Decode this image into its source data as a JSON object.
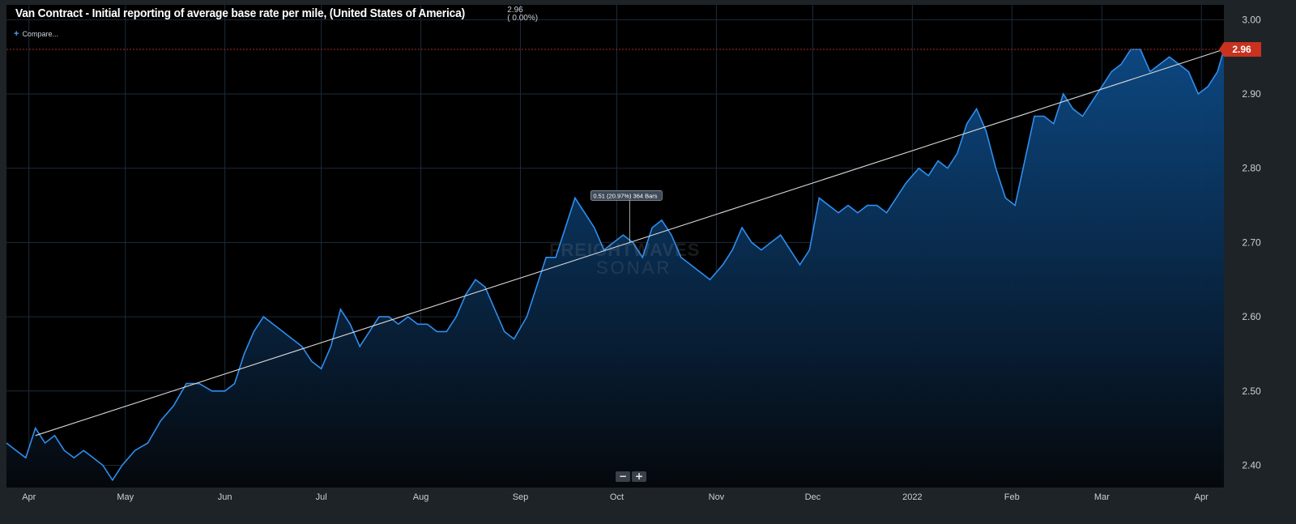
{
  "header": {
    "title": "Van Contract - Initial reporting of average base rate per mile, (United States of America)",
    "last_value": "2.96",
    "change": "( 0.00%)",
    "compare_label": "Compare..."
  },
  "watermark": {
    "line1": "FREIGHTWAVES",
    "line2": "SONAR"
  },
  "zoom": {
    "minus": "−",
    "plus": "+"
  },
  "annotation": {
    "label": "0.51 (20.97%) 364 Bars"
  },
  "colors": {
    "background": "#000000",
    "grid": "#1d2b3a",
    "line": "#2d8ff0",
    "area_top": "#0d4a86",
    "area_bottom": "#05080c",
    "trend": "#d9d9d9",
    "last_marker": "#c8321f"
  },
  "chart_data": {
    "type": "area",
    "title": "Van Contract - Initial reporting of average base rate per mile, (United States of America)",
    "x_ticks": [
      "Apr",
      "May",
      "Jun",
      "Jul",
      "Aug",
      "Sep",
      "Oct",
      "Nov",
      "Dec",
      "2022",
      "Feb",
      "Mar",
      "Apr"
    ],
    "y_ticks": [
      "2.40",
      "2.50",
      "2.60",
      "2.70",
      "2.80",
      "2.90",
      "3.00"
    ],
    "ylim": [
      2.37,
      3.02
    ],
    "x_range": [
      "2021-03-25",
      "2022-04-08"
    ],
    "grid": true,
    "last_value_label": "2.96",
    "series": [
      {
        "points": [
          [
            "2021-03-25",
            2.43
          ],
          [
            "2021-03-28",
            2.42
          ],
          [
            "2021-03-31",
            2.41
          ],
          [
            "2021-04-03",
            2.45
          ],
          [
            "2021-04-06",
            2.43
          ],
          [
            "2021-04-09",
            2.44
          ],
          [
            "2021-04-12",
            2.42
          ],
          [
            "2021-04-15",
            2.41
          ],
          [
            "2021-04-18",
            2.42
          ],
          [
            "2021-04-21",
            2.41
          ],
          [
            "2021-04-24",
            2.4
          ],
          [
            "2021-04-27",
            2.38
          ],
          [
            "2021-04-30",
            2.4
          ],
          [
            "2021-05-04",
            2.42
          ],
          [
            "2021-05-08",
            2.43
          ],
          [
            "2021-05-12",
            2.46
          ],
          [
            "2021-05-16",
            2.48
          ],
          [
            "2021-05-20",
            2.51
          ],
          [
            "2021-05-24",
            2.51
          ],
          [
            "2021-05-28",
            2.5
          ],
          [
            "2021-06-01",
            2.5
          ],
          [
            "2021-06-04",
            2.51
          ],
          [
            "2021-06-07",
            2.55
          ],
          [
            "2021-06-10",
            2.58
          ],
          [
            "2021-06-13",
            2.6
          ],
          [
            "2021-06-16",
            2.59
          ],
          [
            "2021-06-19",
            2.58
          ],
          [
            "2021-06-22",
            2.57
          ],
          [
            "2021-06-25",
            2.56
          ],
          [
            "2021-06-28",
            2.54
          ],
          [
            "2021-07-01",
            2.53
          ],
          [
            "2021-07-04",
            2.56
          ],
          [
            "2021-07-07",
            2.61
          ],
          [
            "2021-07-10",
            2.59
          ],
          [
            "2021-07-13",
            2.56
          ],
          [
            "2021-07-16",
            2.58
          ],
          [
            "2021-07-19",
            2.6
          ],
          [
            "2021-07-22",
            2.6
          ],
          [
            "2021-07-25",
            2.59
          ],
          [
            "2021-07-28",
            2.6
          ],
          [
            "2021-07-31",
            2.59
          ],
          [
            "2021-08-03",
            2.59
          ],
          [
            "2021-08-06",
            2.58
          ],
          [
            "2021-08-09",
            2.58
          ],
          [
            "2021-08-12",
            2.6
          ],
          [
            "2021-08-15",
            2.63
          ],
          [
            "2021-08-18",
            2.65
          ],
          [
            "2021-08-21",
            2.64
          ],
          [
            "2021-08-24",
            2.61
          ],
          [
            "2021-08-27",
            2.58
          ],
          [
            "2021-08-30",
            2.57
          ],
          [
            "2021-09-03",
            2.6
          ],
          [
            "2021-09-06",
            2.64
          ],
          [
            "2021-09-09",
            2.68
          ],
          [
            "2021-09-12",
            2.68
          ],
          [
            "2021-09-15",
            2.72
          ],
          [
            "2021-09-18",
            2.76
          ],
          [
            "2021-09-21",
            2.74
          ],
          [
            "2021-09-24",
            2.72
          ],
          [
            "2021-09-27",
            2.69
          ],
          [
            "2021-09-30",
            2.7
          ],
          [
            "2021-10-03",
            2.71
          ],
          [
            "2021-10-06",
            2.7
          ],
          [
            "2021-10-09",
            2.68
          ],
          [
            "2021-10-12",
            2.72
          ],
          [
            "2021-10-15",
            2.73
          ],
          [
            "2021-10-18",
            2.71
          ],
          [
            "2021-10-21",
            2.68
          ],
          [
            "2021-10-24",
            2.67
          ],
          [
            "2021-10-27",
            2.66
          ],
          [
            "2021-10-30",
            2.65
          ],
          [
            "2021-11-03",
            2.67
          ],
          [
            "2021-11-06",
            2.69
          ],
          [
            "2021-11-09",
            2.72
          ],
          [
            "2021-11-12",
            2.7
          ],
          [
            "2021-11-15",
            2.69
          ],
          [
            "2021-11-18",
            2.7
          ],
          [
            "2021-11-21",
            2.71
          ],
          [
            "2021-11-24",
            2.69
          ],
          [
            "2021-11-27",
            2.67
          ],
          [
            "2021-11-30",
            2.69
          ],
          [
            "2021-12-03",
            2.76
          ],
          [
            "2021-12-06",
            2.75
          ],
          [
            "2021-12-09",
            2.74
          ],
          [
            "2021-12-12",
            2.75
          ],
          [
            "2021-12-15",
            2.74
          ],
          [
            "2021-12-18",
            2.75
          ],
          [
            "2021-12-21",
            2.75
          ],
          [
            "2021-12-24",
            2.74
          ],
          [
            "2021-12-27",
            2.76
          ],
          [
            "2021-12-30",
            2.78
          ],
          [
            "2022-01-03",
            2.8
          ],
          [
            "2022-01-06",
            2.79
          ],
          [
            "2022-01-09",
            2.81
          ],
          [
            "2022-01-12",
            2.8
          ],
          [
            "2022-01-15",
            2.82
          ],
          [
            "2022-01-18",
            2.86
          ],
          [
            "2022-01-21",
            2.88
          ],
          [
            "2022-01-24",
            2.85
          ],
          [
            "2022-01-27",
            2.8
          ],
          [
            "2022-01-30",
            2.76
          ],
          [
            "2022-02-02",
            2.75
          ],
          [
            "2022-02-05",
            2.81
          ],
          [
            "2022-02-08",
            2.87
          ],
          [
            "2022-02-11",
            2.87
          ],
          [
            "2022-02-14",
            2.86
          ],
          [
            "2022-02-17",
            2.9
          ],
          [
            "2022-02-20",
            2.88
          ],
          [
            "2022-02-23",
            2.87
          ],
          [
            "2022-02-26",
            2.89
          ],
          [
            "2022-03-01",
            2.91
          ],
          [
            "2022-03-04",
            2.93
          ],
          [
            "2022-03-07",
            2.94
          ],
          [
            "2022-03-10",
            2.96
          ],
          [
            "2022-03-13",
            2.96
          ],
          [
            "2022-03-16",
            2.93
          ],
          [
            "2022-03-19",
            2.94
          ],
          [
            "2022-03-22",
            2.95
          ],
          [
            "2022-03-25",
            2.94
          ],
          [
            "2022-03-28",
            2.93
          ],
          [
            "2022-03-31",
            2.9
          ],
          [
            "2022-04-03",
            2.91
          ],
          [
            "2022-04-06",
            2.93
          ],
          [
            "2022-04-08",
            2.96
          ]
        ]
      }
    ],
    "trendline": {
      "start": [
        "2021-04-03",
        2.44
      ],
      "end": [
        "2022-04-08",
        2.96
      ]
    }
  }
}
